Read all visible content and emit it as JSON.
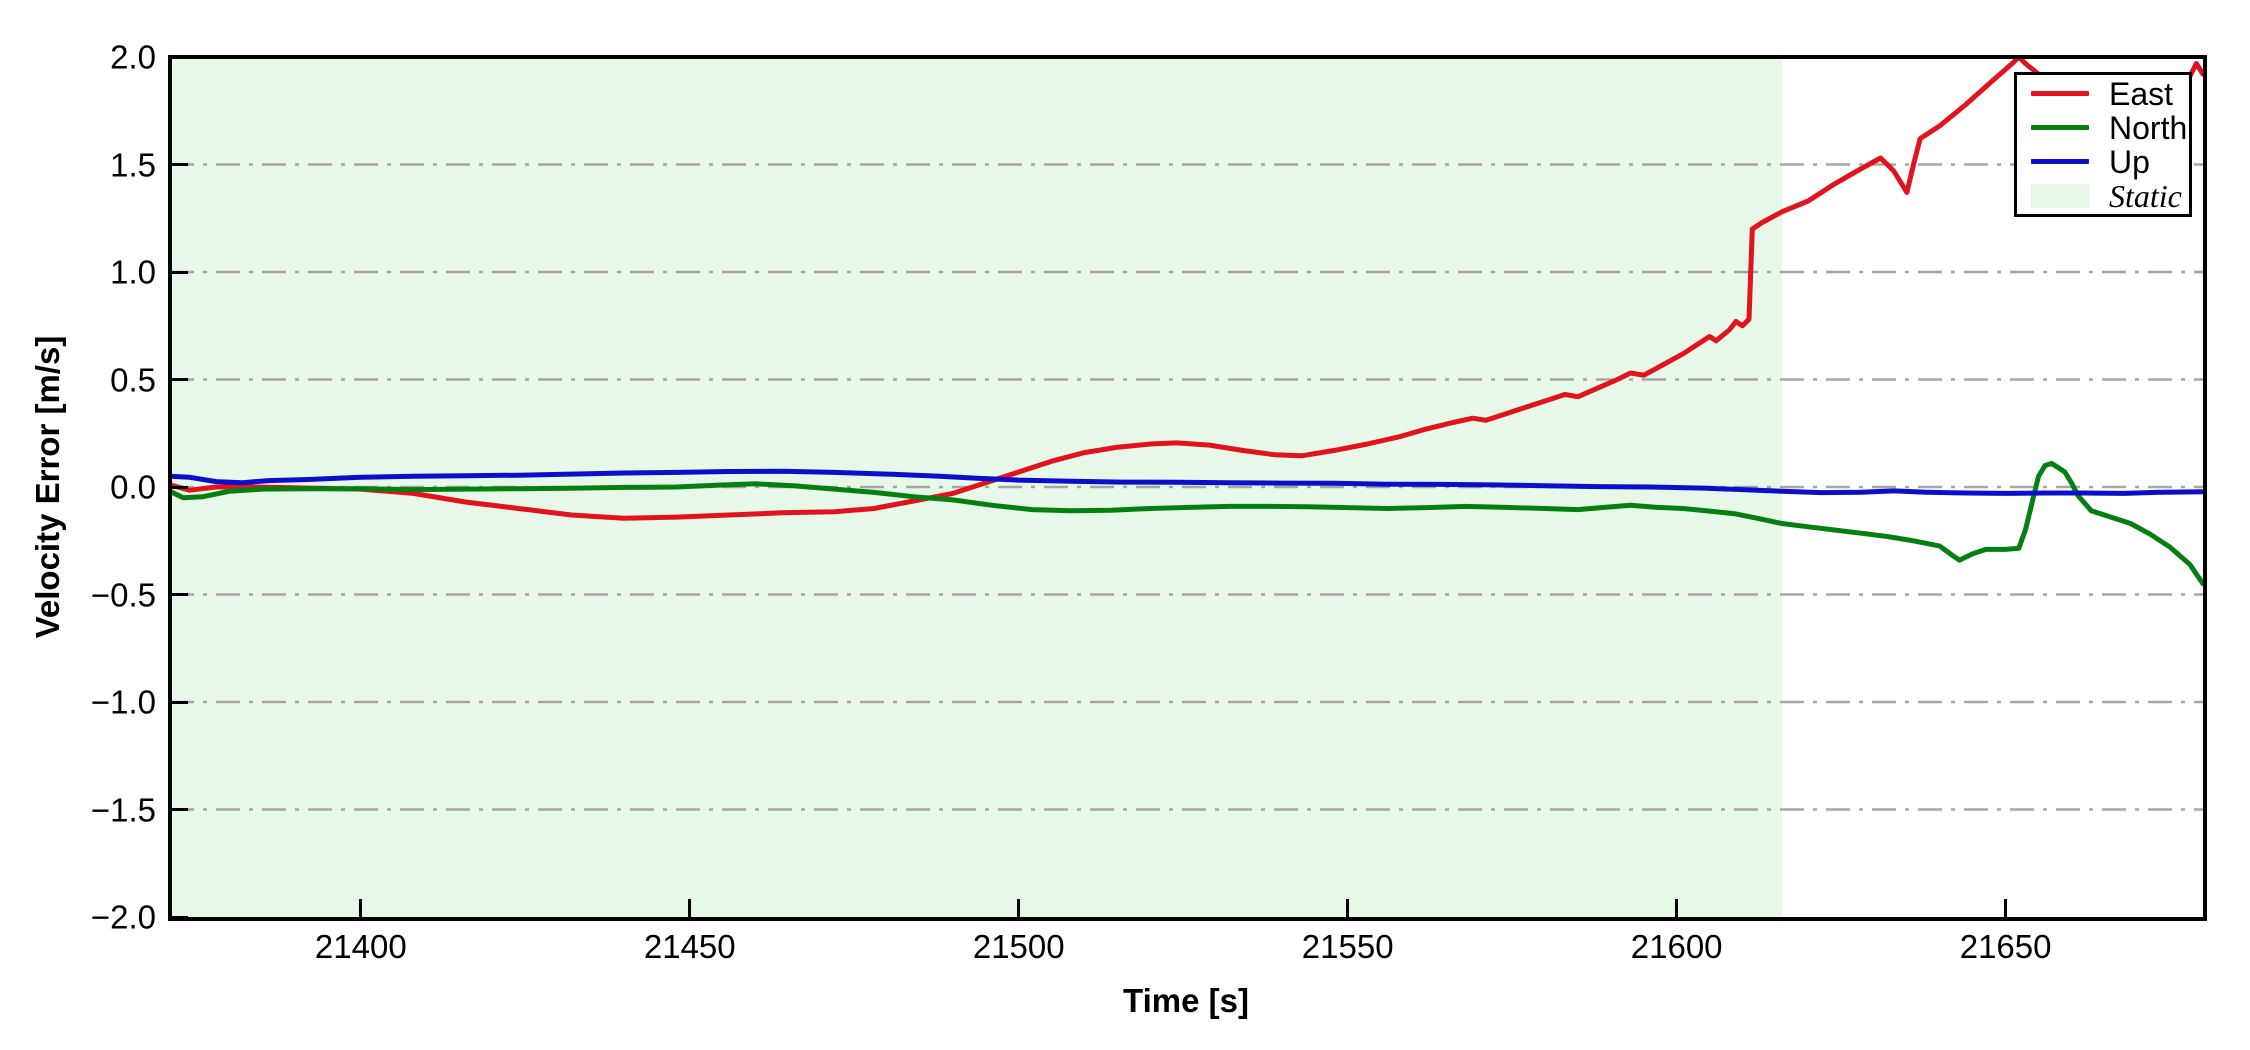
{
  "chart_data": {
    "type": "line",
    "title": "",
    "xlabel": "Time [s]",
    "ylabel": "Velocity Error [m/s]",
    "xlim": [
      21371,
      21680
    ],
    "ylim": [
      -2.0,
      2.0
    ],
    "grid": {
      "axis": "y",
      "style": "dash-dot",
      "color": "#a6a6a6",
      "on": true
    },
    "xticks": [
      {
        "value": 21400,
        "label": "21400"
      },
      {
        "value": 21450,
        "label": "21450"
      },
      {
        "value": 21500,
        "label": "21500"
      },
      {
        "value": 21550,
        "label": "21550"
      },
      {
        "value": 21600,
        "label": "21600"
      },
      {
        "value": 21650,
        "label": "21650"
      }
    ],
    "yticks": [
      {
        "value": 2.0,
        "label": "2.0"
      },
      {
        "value": 1.5,
        "label": "1.5"
      },
      {
        "value": 1.0,
        "label": "1.0"
      },
      {
        "value": 0.5,
        "label": "0.5"
      },
      {
        "value": 0.0,
        "label": "0.0"
      },
      {
        "value": -0.5,
        "label": "−0.5"
      },
      {
        "value": -1.0,
        "label": "−1.0"
      },
      {
        "value": -1.5,
        "label": "−1.5"
      },
      {
        "value": -2.0,
        "label": "−2.0"
      }
    ],
    "static_region": {
      "label": "Static",
      "start": 21371,
      "end": 21616,
      "fill": "#e8f8e8"
    },
    "legend": {
      "position": "upper right"
    },
    "series": [
      {
        "name": "East",
        "color": "#e1131d",
        "x": [
          21371,
          21374,
          21378,
          21384,
          21392,
          21400,
          21408,
          21416,
          21424,
          21432,
          21440,
          21448,
          21456,
          21464,
          21472,
          21478,
          21484,
          21490,
          21495,
          21500,
          21505,
          21510,
          21515,
          21520,
          21524,
          21529,
          21534,
          21539,
          21543,
          21548,
          21553,
          21558,
          21562,
          21566,
          21569,
          21571,
          21574,
          21577,
          21580,
          21583,
          21585,
          21588,
          21591,
          21593,
          21595,
          21598,
          21601,
          21603,
          21605,
          21606,
          21608,
          21609,
          21610,
          21611,
          21611.5,
          21613,
          21616,
          21620,
          21624,
          21628,
          21631,
          21633,
          21635,
          21636,
          21637,
          21640,
          21644,
          21648,
          21651,
          21652,
          21653,
          21655,
          21658,
          21662,
          21666,
          21670,
          21674,
          21677,
          21679,
          21680
        ],
        "y": [
          0.01,
          -0.015,
          0.0,
          0.0,
          -0.005,
          -0.01,
          -0.03,
          -0.07,
          -0.1,
          -0.13,
          -0.145,
          -0.14,
          -0.13,
          -0.12,
          -0.115,
          -0.1,
          -0.065,
          -0.03,
          0.02,
          0.07,
          0.12,
          0.16,
          0.185,
          0.2,
          0.205,
          0.195,
          0.17,
          0.15,
          0.145,
          0.17,
          0.2,
          0.235,
          0.27,
          0.3,
          0.32,
          0.31,
          0.34,
          0.37,
          0.4,
          0.43,
          0.42,
          0.46,
          0.5,
          0.53,
          0.52,
          0.57,
          0.62,
          0.66,
          0.7,
          0.68,
          0.73,
          0.77,
          0.75,
          0.78,
          1.2,
          1.23,
          1.28,
          1.33,
          1.41,
          1.48,
          1.53,
          1.47,
          1.37,
          1.5,
          1.62,
          1.68,
          1.78,
          1.89,
          1.97,
          2.0,
          1.97,
          1.92,
          1.85,
          1.78,
          1.73,
          1.72,
          1.76,
          1.85,
          1.97,
          1.92
        ]
      },
      {
        "name": "North",
        "color": "#067f11",
        "x": [
          21371,
          21373,
          21376,
          21380,
          21385,
          21392,
          21400,
          21408,
          21416,
          21424,
          21432,
          21440,
          21448,
          21454,
          21460,
          21466,
          21472,
          21478,
          21484,
          21490,
          21496,
          21502,
          21508,
          21514,
          21520,
          21526,
          21532,
          21538,
          21544,
          21550,
          21556,
          21562,
          21568,
          21574,
          21580,
          21585,
          21589,
          21593,
          21597,
          21601,
          21605,
          21609,
          21613,
          21616,
          21620,
          21624,
          21628,
          21632,
          21636,
          21640,
          21642,
          21643,
          21645,
          21647,
          21650,
          21652,
          21653,
          21655,
          21656,
          21657,
          21659,
          21660,
          21661,
          21663,
          21666,
          21669,
          21672,
          21675,
          21678,
          21680
        ],
        "y": [
          -0.02,
          -0.05,
          -0.045,
          -0.02,
          -0.01,
          -0.008,
          -0.008,
          -0.012,
          -0.01,
          -0.008,
          -0.006,
          -0.002,
          0.0,
          0.008,
          0.015,
          0.005,
          -0.01,
          -0.025,
          -0.045,
          -0.06,
          -0.085,
          -0.105,
          -0.11,
          -0.108,
          -0.1,
          -0.095,
          -0.09,
          -0.09,
          -0.092,
          -0.096,
          -0.1,
          -0.096,
          -0.09,
          -0.095,
          -0.1,
          -0.105,
          -0.095,
          -0.085,
          -0.095,
          -0.1,
          -0.112,
          -0.125,
          -0.15,
          -0.17,
          -0.185,
          -0.2,
          -0.215,
          -0.23,
          -0.25,
          -0.275,
          -0.32,
          -0.34,
          -0.31,
          -0.29,
          -0.29,
          -0.285,
          -0.2,
          0.05,
          0.1,
          0.11,
          0.07,
          0.02,
          -0.04,
          -0.11,
          -0.14,
          -0.17,
          -0.22,
          -0.28,
          -0.36,
          -0.45
        ]
      },
      {
        "name": "Up",
        "color": "#0d0dcc",
        "x": [
          21371,
          21374,
          21378,
          21382,
          21386,
          21392,
          21400,
          21408,
          21416,
          21424,
          21432,
          21440,
          21448,
          21456,
          21464,
          21472,
          21480,
          21488,
          21494,
          21500,
          21508,
          21516,
          21524,
          21532,
          21540,
          21548,
          21556,
          21564,
          21572,
          21580,
          21588,
          21596,
          21604,
          21610,
          21616,
          21622,
          21628,
          21633,
          21638,
          21644,
          21650,
          21656,
          21662,
          21668,
          21674,
          21680
        ],
        "y": [
          0.05,
          0.045,
          0.025,
          0.02,
          0.03,
          0.035,
          0.045,
          0.05,
          0.052,
          0.055,
          0.06,
          0.065,
          0.068,
          0.072,
          0.073,
          0.068,
          0.06,
          0.05,
          0.04,
          0.032,
          0.027,
          0.023,
          0.022,
          0.02,
          0.018,
          0.017,
          0.013,
          0.012,
          0.01,
          0.006,
          0.002,
          0.0,
          -0.005,
          -0.012,
          -0.02,
          -0.026,
          -0.024,
          -0.018,
          -0.024,
          -0.028,
          -0.03,
          -0.028,
          -0.028,
          -0.03,
          -0.024,
          -0.022
        ]
      }
    ]
  }
}
